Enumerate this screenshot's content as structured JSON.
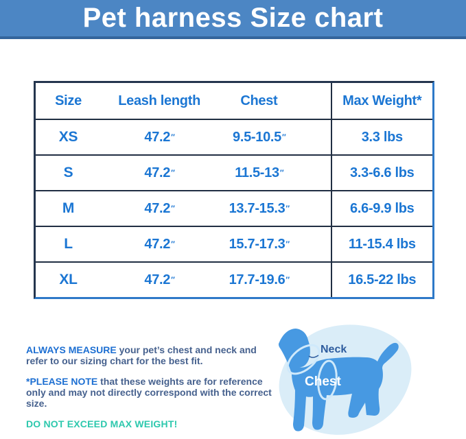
{
  "banner": {
    "title": "Pet harness Size chart",
    "bg_color": "#4c86c4",
    "text_color": "#ffffff"
  },
  "table": {
    "headers": [
      "Size",
      "Leash length",
      "Chest",
      "Max Weight*"
    ],
    "rows": [
      [
        "XS",
        "47.2″",
        "9.5-10.5″",
        "3.3 lbs"
      ],
      [
        "S",
        "47.2″",
        "11.5-13″",
        "3.3-6.6 lbs"
      ],
      [
        "M",
        "47.2″",
        "13.7-15.3″",
        "6.6-9.9 lbs"
      ],
      [
        "L",
        "47.2″",
        "15.7-17.3″",
        "11-15.4 lbs"
      ],
      [
        "XL",
        "47.2″",
        "17.7-19.6″",
        "16.5-22 lbs"
      ]
    ],
    "text_color": "#1b76d3",
    "grid_line_color": "#202e42",
    "outer_border_color": "#2e79c8"
  },
  "notes": [
    {
      "lead": "ALWAYS MEASURE",
      "text": " your pet’s chest and neck and refer to our sizing chart for the best fit.",
      "lead_color": "#1d6fd2"
    },
    {
      "lead": "*PLEASE NOTE",
      "text": " that these weights are for reference only and may not directly correspond with the correct size.",
      "lead_color": "#1d6fd2"
    },
    {
      "lead": "DO NOT EXCEED MAX WEIGHT!",
      "text": "",
      "lead_color": "#2dc8ad"
    }
  ],
  "diagram": {
    "neck_label": "Neck",
    "chest_label": "Chest",
    "dog_color": "#4799e2",
    "blob_color": "#daedf8",
    "strap_color": "#cfe9fb"
  }
}
